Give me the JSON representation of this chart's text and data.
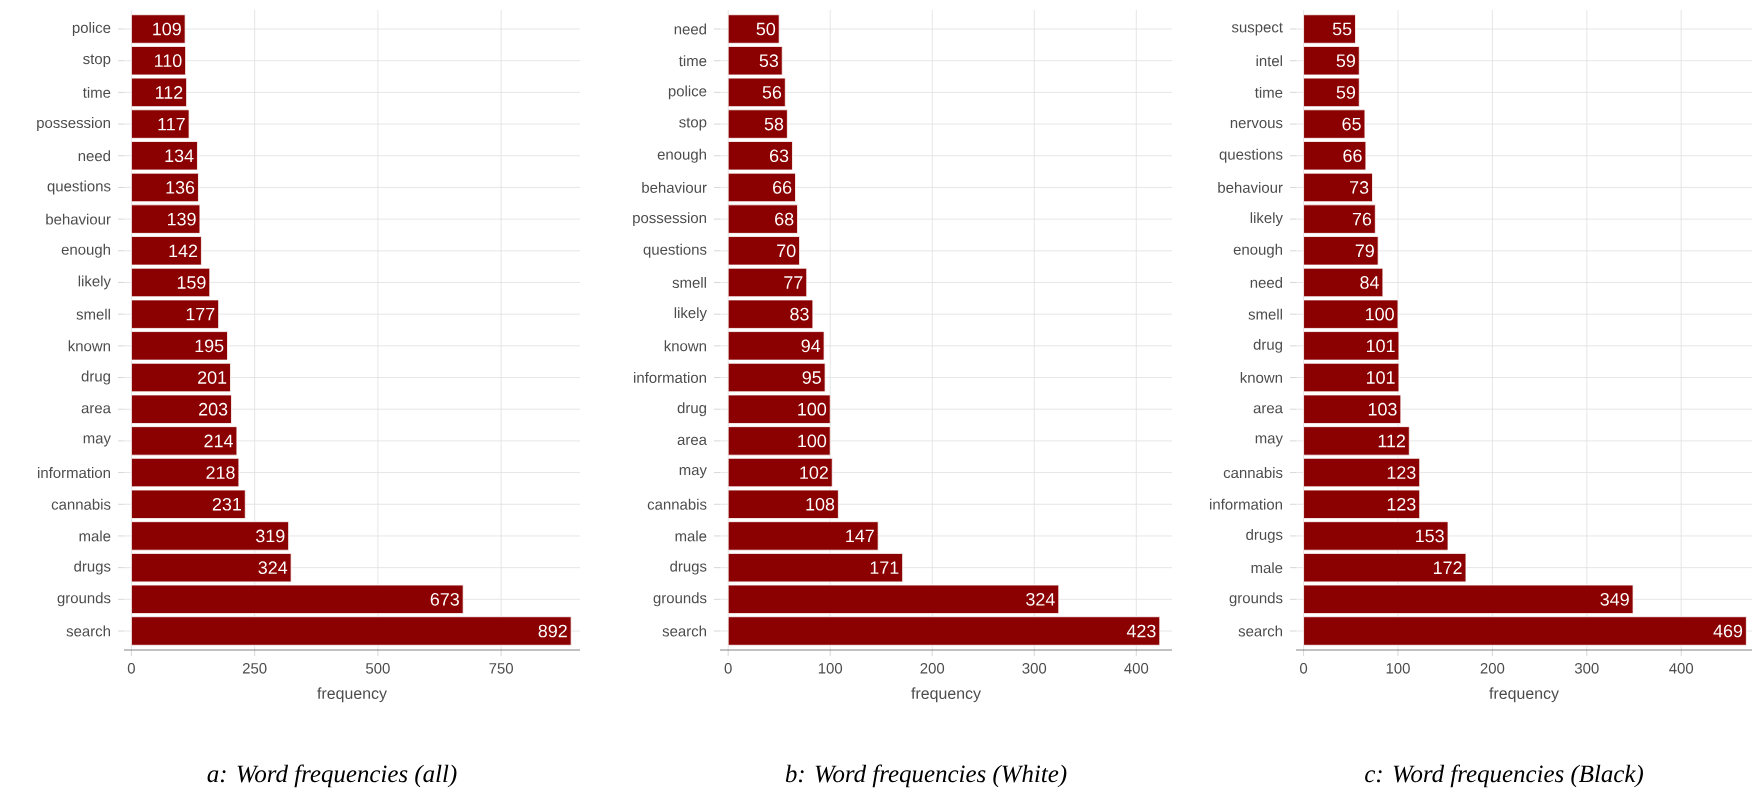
{
  "chart_data": [
    {
      "type": "bar",
      "orientation": "horizontal",
      "title": "a: Word frequencies (all)",
      "xlabel": "frequency",
      "color": "#8b0000",
      "grid": true,
      "data_labels": true,
      "xlim": [
        -15,
        910
      ],
      "xticks": [
        0,
        250,
        500,
        750
      ],
      "categories": [
        "police",
        "stop",
        "time",
        "possession",
        "need",
        "questions",
        "behaviour",
        "enough",
        "likely",
        "smell",
        "known",
        "drug",
        "area",
        "may",
        "information",
        "cannabis",
        "male",
        "drugs",
        "grounds",
        "search"
      ],
      "values": [
        109,
        110,
        112,
        117,
        134,
        136,
        139,
        142,
        159,
        177,
        195,
        201,
        203,
        214,
        218,
        231,
        319,
        324,
        673,
        892
      ]
    },
    {
      "type": "bar",
      "orientation": "horizontal",
      "title": "b: Word frequencies (White)",
      "xlabel": "frequency",
      "color": "#8b0000",
      "grid": true,
      "data_labels": true,
      "xlim": [
        -8,
        435
      ],
      "xticks": [
        0,
        100,
        200,
        300,
        400
      ],
      "categories": [
        "need",
        "time",
        "police",
        "stop",
        "enough",
        "behaviour",
        "possession",
        "questions",
        "smell",
        "likely",
        "known",
        "information",
        "drug",
        "area",
        "may",
        "cannabis",
        "male",
        "drugs",
        "grounds",
        "search"
      ],
      "values": [
        50,
        53,
        56,
        58,
        63,
        66,
        68,
        70,
        77,
        83,
        94,
        95,
        100,
        100,
        102,
        108,
        147,
        171,
        324,
        423
      ]
    },
    {
      "type": "bar",
      "orientation": "horizontal",
      "title": "c: Word frequencies (Black)",
      "xlabel": "frequency",
      "color": "#8b0000",
      "grid": true,
      "data_labels": true,
      "xlim": [
        -8,
        475
      ],
      "xticks": [
        0,
        100,
        200,
        300,
        400
      ],
      "categories": [
        "suspect",
        "intel",
        "time",
        "nervous",
        "questions",
        "behaviour",
        "likely",
        "enough",
        "need",
        "smell",
        "drug",
        "known",
        "area",
        "may",
        "cannabis",
        "information",
        "drugs",
        "male",
        "grounds",
        "search"
      ],
      "values": [
        55,
        59,
        59,
        65,
        66,
        73,
        76,
        79,
        84,
        100,
        101,
        101,
        103,
        112,
        123,
        123,
        153,
        172,
        349,
        469
      ]
    }
  ]
}
